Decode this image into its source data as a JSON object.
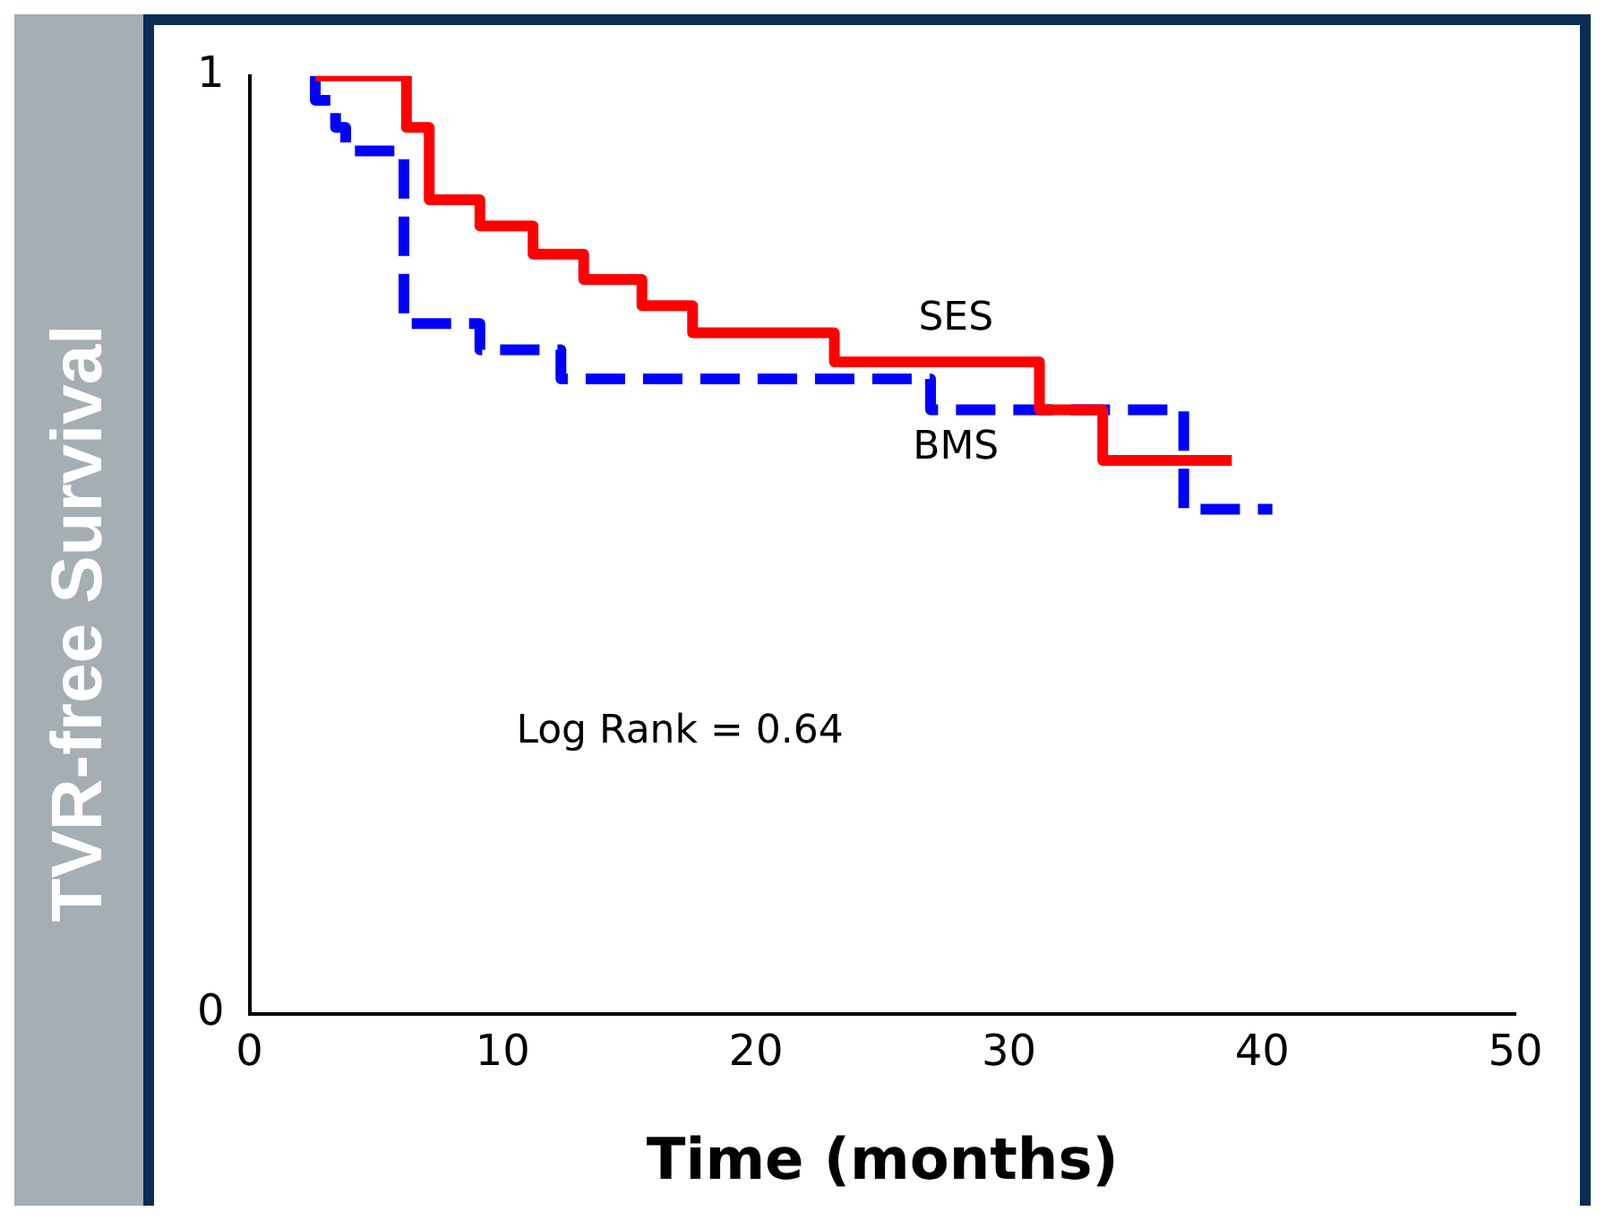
{
  "chart_data": {
    "type": "step",
    "xlabel": "Time (months)",
    "ylabel": "TVR-free Survival",
    "xlim": [
      0,
      50
    ],
    "xticks": [
      0,
      10,
      20,
      30,
      40,
      50
    ],
    "ylim": [
      0,
      1
    ],
    "yticks": [
      0,
      1
    ],
    "grid": false,
    "legend": false,
    "annotations": [
      "Log Rank = 0.64"
    ],
    "series": [
      {
        "name": "SES",
        "color": "#ff0000",
        "line_style": "solid",
        "x": [
          2.6,
          6.2,
          7.1,
          9.1,
          11.2,
          13.2,
          15.5,
          17.5,
          23.1,
          31.2,
          33.7,
          38.8
        ],
        "values": [
          1,
          0.945,
          0.868,
          0.84,
          0.81,
          0.783,
          0.755,
          0.726,
          0.695,
          0.644,
          0.59,
          0.59
        ]
      },
      {
        "name": "BMS",
        "color": "#0000ff",
        "line_style": "dashed",
        "x": [
          2.6,
          2.6,
          3.4,
          3.8,
          6.1,
          9.1,
          12.3,
          26.9,
          36.9,
          40.4
        ],
        "values": [
          1,
          0.974,
          0.945,
          0.92,
          0.736,
          0.708,
          0.677,
          0.644,
          0.538,
          0.538
        ]
      }
    ]
  }
}
